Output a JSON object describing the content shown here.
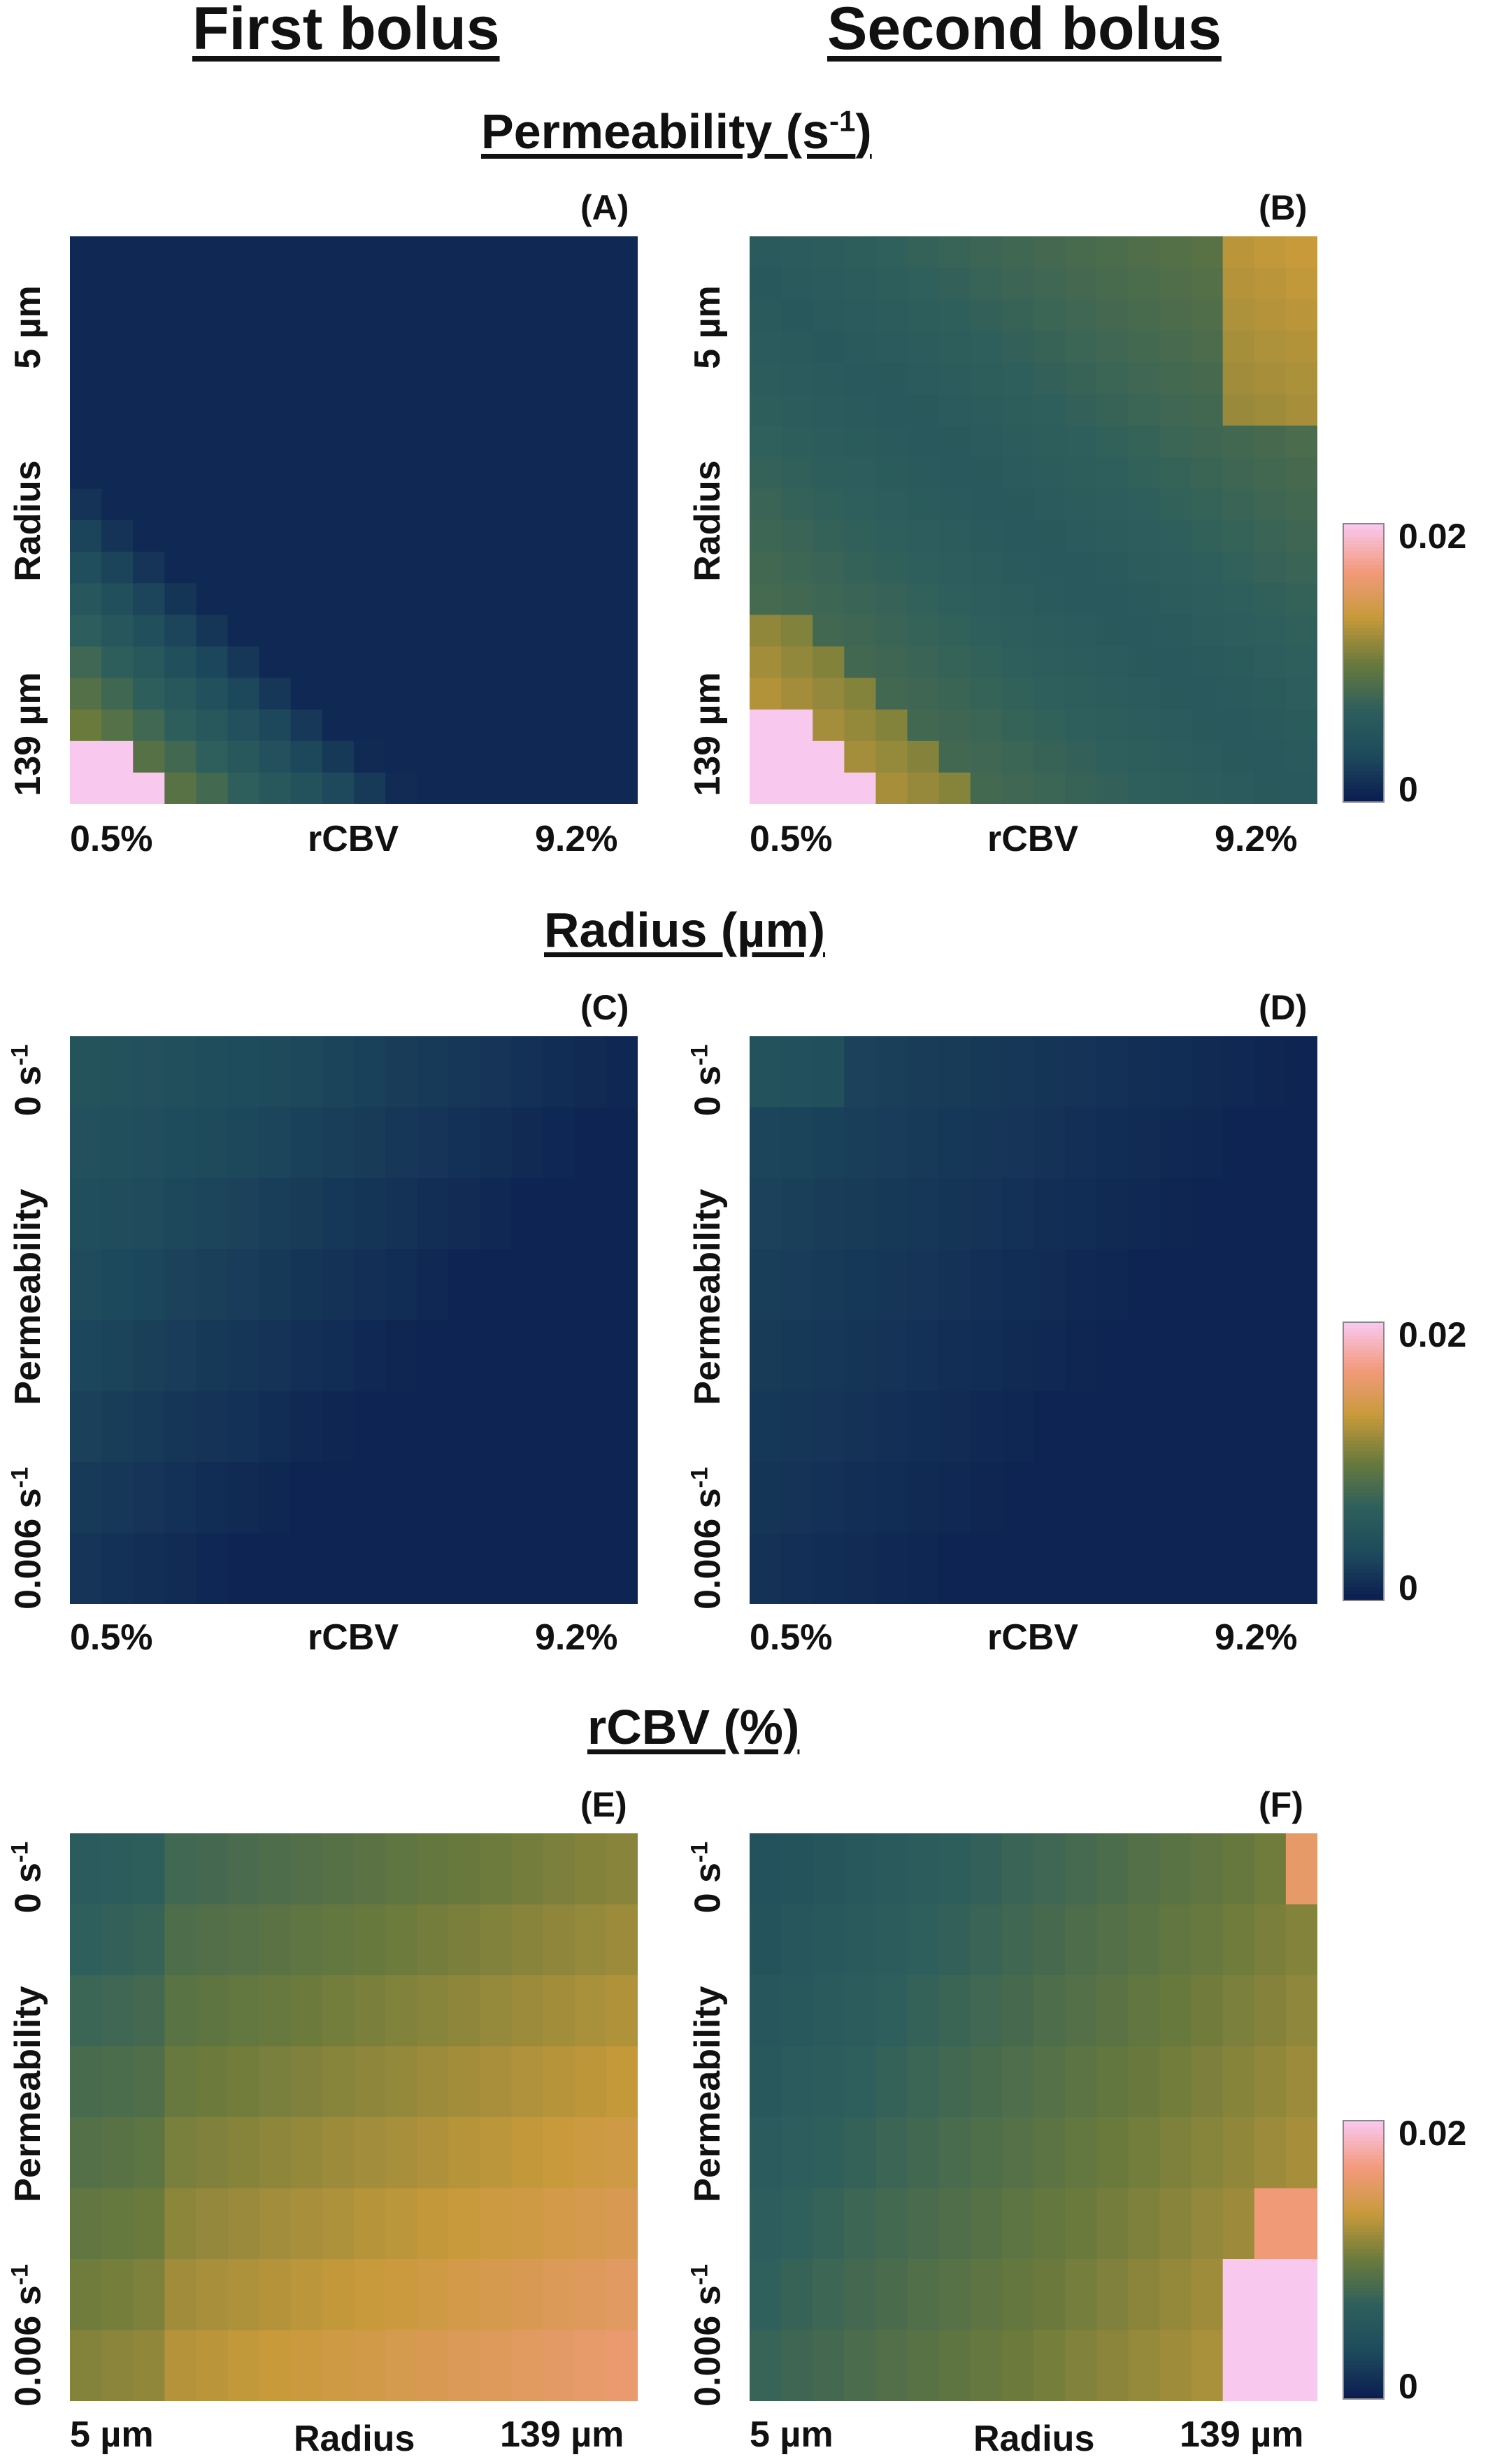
{
  "columns": [
    "First bolus",
    "Second bolus"
  ],
  "sections": [
    {
      "title": "Permeability (s",
      "sup": "-1",
      "suffix": ")"
    },
    {
      "title": "Radius (µm)",
      "sup": "",
      "suffix": ""
    },
    {
      "title": "rCBV (%)",
      "sup": "",
      "suffix": ""
    }
  ],
  "colorbar": {
    "max_label": "0.02",
    "min_label": "0",
    "colors": [
      "#0b1d51",
      "#1e4a5c",
      "#2e5f5c",
      "#6a7a3c",
      "#c89a3a",
      "#f39a7c",
      "#f8c8ef"
    ]
  },
  "chart_data": [
    {
      "panel": "(A)",
      "type": "heatmap",
      "target": "Permeability (s-1)",
      "bolus": "First bolus",
      "xlabel": "rCBV",
      "xticks": [
        "0.5%",
        "9.2%"
      ],
      "ylabel": "Radius",
      "yticks": [
        "5 µm",
        "139 µm"
      ],
      "grid_size": [
        18,
        18
      ],
      "value_range": [
        0,
        0.02
      ],
      "pattern": "A"
    },
    {
      "panel": "(B)",
      "type": "heatmap",
      "target": "Permeability (s-1)",
      "bolus": "Second bolus",
      "xlabel": "rCBV",
      "xticks": [
        "0.5%",
        "9.2%"
      ],
      "ylabel": "Radius",
      "yticks": [
        "5 µm",
        "139 µm"
      ],
      "grid_size": [
        18,
        18
      ],
      "value_range": [
        0,
        0.02
      ],
      "pattern": "B"
    },
    {
      "panel": "(C)",
      "type": "heatmap",
      "target": "Radius (µm)",
      "bolus": "First bolus",
      "xlabel": "rCBV",
      "xticks": [
        "0.5%",
        "9.2%"
      ],
      "ylabel": "Permeability",
      "yticks": [
        "0 s",
        "0.006 s"
      ],
      "ytick_sup": "-1",
      "grid_size": [
        18,
        8
      ],
      "value_range": [
        0,
        0.02
      ],
      "pattern": "C"
    },
    {
      "panel": "(D)",
      "type": "heatmap",
      "target": "Radius (µm)",
      "bolus": "Second bolus",
      "xlabel": "rCBV",
      "xticks": [
        "0.5%",
        "9.2%"
      ],
      "ylabel": "Permeability",
      "yticks": [
        "0 s",
        "0.006 s"
      ],
      "ytick_sup": "-1",
      "grid_size": [
        18,
        8
      ],
      "value_range": [
        0,
        0.02
      ],
      "pattern": "D"
    },
    {
      "panel": "(E)",
      "type": "heatmap",
      "target": "rCBV (%)",
      "bolus": "First bolus",
      "xlabel": "Radius",
      "xticks": [
        "5 µm",
        "139 µm"
      ],
      "ylabel": "Permeability",
      "yticks": [
        "0 s",
        "0.006 s"
      ],
      "ytick_sup": "-1",
      "grid_size": [
        18,
        8
      ],
      "value_range": [
        0,
        0.02
      ],
      "pattern": "E"
    },
    {
      "panel": "(F)",
      "type": "heatmap",
      "target": "rCBV (%)",
      "bolus": "Second bolus",
      "xlabel": "Radius",
      "xticks": [
        "5 µm",
        "139 µm"
      ],
      "ylabel": "Permeability",
      "yticks": [
        "0 s",
        "0.006 s"
      ],
      "ytick_sup": "-1",
      "grid_size": [
        18,
        8
      ],
      "value_range": [
        0,
        0.02
      ],
      "pattern": "F"
    }
  ]
}
